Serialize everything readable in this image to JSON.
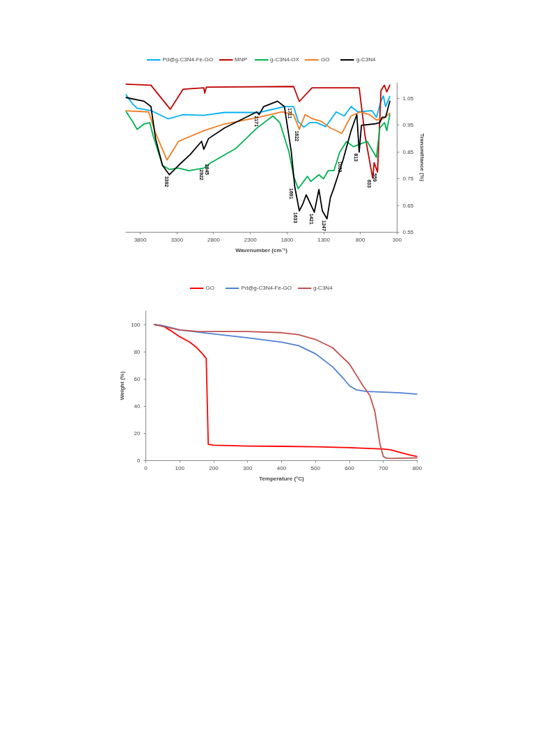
{
  "chart_data": [
    {
      "type": "line",
      "xlabel": "Wavenumber (cm⁻¹)",
      "ylabel": "Transmittance (%)",
      "xlim": [
        4000,
        300
      ],
      "xticks": [
        3800,
        3300,
        2800,
        2300,
        1800,
        1300,
        800,
        300
      ],
      "ylim": [
        0.55,
        1.11
      ],
      "yticks": [
        0.55,
        0.65,
        0.75,
        0.85,
        0.95,
        1.05
      ],
      "grid": false,
      "legend": "top",
      "series": [
        {
          "name": "Pd@g-C3N4-Fe-GO",
          "color": "#00b0f0",
          "x": [
            4000,
            3906,
            3843,
            3655,
            3420,
            3216,
            2934,
            2652,
            2181,
            1836,
            1711,
            1648,
            1570,
            1492,
            1397,
            1272,
            1131,
            1021,
            927,
            833,
            645,
            582,
            520,
            488,
            457,
            400
          ],
          "values": [
            1.066,
            1.03,
            1.014,
            1.005,
            0.974,
            0.99,
            0.987,
            0.998,
            0.998,
            1.02,
            1.02,
            0.964,
            0.943,
            0.96,
            0.96,
            0.945,
            1.0,
            0.985,
            1.02,
            1.0,
            1.005,
            0.98,
            1.04,
            1.06,
            1.02,
            1.058
          ]
        },
        {
          "name": "MNP",
          "color": "#c00000",
          "x": [
            4000,
            3655,
            3392,
            3216,
            2934,
            2922,
            2900,
            1711,
            1633,
            1460,
            817,
            739,
            645,
            633,
            613,
            567,
            520,
            473,
            441,
            400
          ],
          "values": [
            1.104,
            1.1,
            1.01,
            1.085,
            1.09,
            1.07,
            1.093,
            1.095,
            1.039,
            1.09,
            1.09,
            0.914,
            0.77,
            0.752,
            0.81,
            0.775,
            1.08,
            1.1,
            1.075,
            1.1
          ]
        },
        {
          "name": "g-C3N4-OX",
          "color": "#00b050",
          "x": [
            4000,
            3906,
            3843,
            3749,
            3671,
            3624,
            3498,
            3404,
            3279,
            3138,
            2934,
            2840,
            2495,
            2213,
            1993,
            1899,
            1774,
            1711,
            1648,
            1523,
            1476,
            1366,
            1303,
            1241,
            1162,
            1084,
            990,
            896,
            802,
            708,
            582,
            536,
            473,
            441,
            400
          ],
          "values": [
            1.004,
            0.964,
            0.935,
            0.955,
            0.96,
            0.91,
            0.8,
            0.785,
            0.79,
            0.78,
            0.79,
            0.81,
            0.864,
            0.939,
            0.985,
            0.96,
            0.85,
            0.76,
            0.713,
            0.759,
            0.74,
            0.765,
            0.75,
            0.78,
            0.78,
            0.848,
            0.889,
            0.87,
            0.88,
            0.89,
            0.83,
            0.94,
            0.96,
            0.93,
            0.99
          ]
        },
        {
          "name": "GO",
          "color": "#f07c22",
          "x": [
            4000,
            3686,
            3592,
            3436,
            3279,
            2934,
            2652,
            2181,
            1868,
            1711,
            1633,
            1554,
            1460,
            1335,
            1209,
            1053,
            927,
            802,
            676,
            582,
            488,
            400
          ],
          "values": [
            1.004,
            1.0,
            0.92,
            0.82,
            0.89,
            0.93,
            0.955,
            0.98,
            1.0,
            0.99,
            0.935,
            0.99,
            0.975,
            0.965,
            0.94,
            0.92,
            0.985,
            1.0,
            0.99,
            0.97,
            0.975,
            0.995
          ]
        },
        {
          "name": "g-C3N4",
          "color": "#000000",
          "x": [
            4000,
            3749,
            3655,
            3592,
            3498,
            3404,
            3279,
            3122,
            2965,
            2934,
            2871,
            2652,
            2213,
            2181,
            2119,
            1930,
            1836,
            1742,
            1695,
            1633,
            1586,
            1539,
            1429,
            1366,
            1319,
            1256,
            1209,
            1162,
            1037,
            927,
            849,
            817,
            786,
            613,
            536,
            504,
            457,
            400
          ],
          "values": [
            1.054,
            1.04,
            1.02,
            0.9,
            0.8,
            0.765,
            0.8,
            0.84,
            0.89,
            0.86,
            0.9,
            0.94,
            1.0,
            0.99,
            1.02,
            1.04,
            1.02,
            0.85,
            0.72,
            0.63,
            0.655,
            0.69,
            0.625,
            0.71,
            0.63,
            0.6,
            0.68,
            0.715,
            0.82,
            0.93,
            0.99,
            0.85,
            0.95,
            0.955,
            0.96,
            0.98,
            0.98,
            1.04
          ]
        }
      ],
      "annotations": [
        {
          "text": "3392",
          "x": 3392,
          "y": 0.765
        },
        {
          "text": "2922",
          "x": 2922,
          "y": 0.79
        },
        {
          "text": "2845",
          "x": 2845,
          "y": 0.81
        },
        {
          "text": "2171",
          "x": 2171,
          "y": 0.99
        },
        {
          "text": "1711",
          "x": 1711,
          "y": 1.02
        },
        {
          "text": "1622",
          "x": 1622,
          "y": 0.935
        },
        {
          "text": "1691",
          "x": 1691,
          "y": 0.72
        },
        {
          "text": "1633",
          "x": 1633,
          "y": 0.63
        },
        {
          "text": "1421",
          "x": 1421,
          "y": 0.625
        },
        {
          "text": "1247",
          "x": 1247,
          "y": 0.6
        },
        {
          "text": "1033",
          "x": 1033,
          "y": 0.82
        },
        {
          "text": "813",
          "x": 813,
          "y": 0.85
        },
        {
          "text": "633",
          "x": 633,
          "y": 0.752
        },
        {
          "text": "559",
          "x": 559,
          "y": 0.775
        }
      ]
    },
    {
      "type": "line",
      "xlabel": "Temperature (°C)",
      "ylabel": "Weight (%)",
      "xlim": [
        0,
        800
      ],
      "xticks": [
        0,
        100,
        200,
        300,
        400,
        500,
        600,
        700,
        800
      ],
      "ylim": [
        0,
        110
      ],
      "yticks": [
        0,
        20,
        40,
        60,
        80,
        100
      ],
      "grid": false,
      "legend": "top",
      "series": [
        {
          "name": "GO",
          "color": "#ff0000",
          "x": [
            25,
            50,
            70,
            100,
            130,
            150,
            165,
            178,
            184,
            200,
            300,
            400,
            500,
            600,
            700,
            720,
            750,
            780,
            800
          ],
          "values": [
            100,
            99,
            96,
            91,
            87,
            83,
            79,
            75,
            12,
            11.3,
            10.7,
            10.5,
            10.2,
            9.5,
            8.5,
            8,
            6,
            4,
            3
          ]
        },
        {
          "name": "Pd@g-C3N4-Fe-GO",
          "color": "#4f81d0",
          "x": [
            25,
            50,
            100,
            200,
            300,
            400,
            450,
            500,
            550,
            580,
            600,
            620,
            650,
            700,
            750,
            800
          ],
          "values": [
            100,
            99.2,
            96,
            93,
            90.2,
            87,
            84.5,
            78.5,
            69,
            61,
            55,
            52,
            50.8,
            50.3,
            49.8,
            48.8
          ]
        },
        {
          "name": "g-C3N4",
          "color": "#c0504d",
          "x": [
            25,
            50,
            100,
            150,
            200,
            300,
            400,
            450,
            500,
            550,
            600,
            640,
            660,
            675,
            690,
            700,
            710,
            720,
            800
          ],
          "values": [
            100,
            98.5,
            96,
            95,
            94.8,
            94.8,
            94,
            92.5,
            89,
            83,
            71,
            55,
            48,
            36,
            12,
            3,
            1.7,
            1.6,
            2
          ]
        }
      ]
    }
  ]
}
